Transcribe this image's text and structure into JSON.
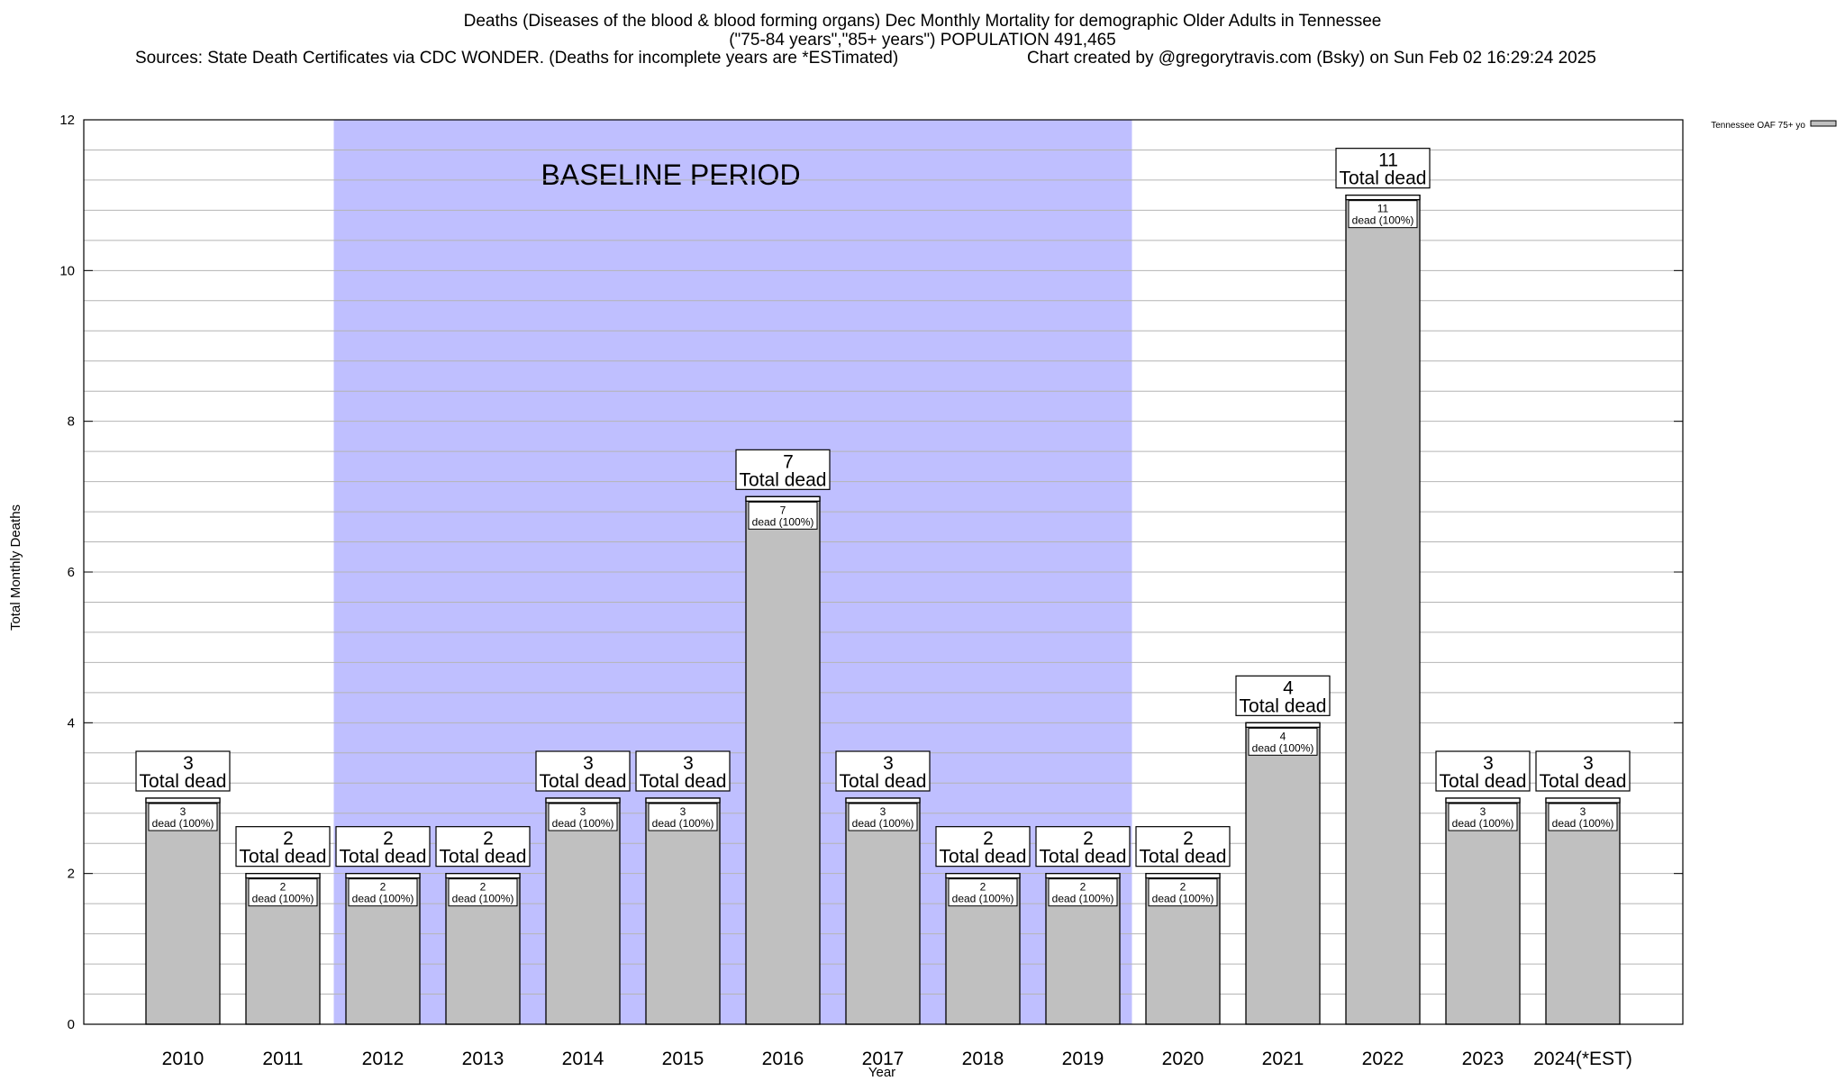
{
  "header": {
    "title_line1": "Deaths (Diseases of the blood & blood forming organs) Dec Monthly Mortality for demographic Older Adults in Tennessee",
    "title_line2": "(\"75-84 years\",\"85+ years\") POPULATION 491,465",
    "sources": "Sources: State Death Certificates via CDC WONDER. (Deaths for incomplete years are *ESTimated)",
    "credit": "Chart created by @gregorytravis.com (Bsky) on Sun Feb 02 16:29:24 2025"
  },
  "chart_data": {
    "type": "bar",
    "xlabel": "Year",
    "ylabel": "Total Monthly Deaths",
    "ylim": [
      0,
      12
    ],
    "yticks": [
      0,
      2,
      4,
      6,
      8,
      10,
      12
    ],
    "y_minor_step": 0.4,
    "grid": true,
    "categories": [
      "2010",
      "2011",
      "2012",
      "2013",
      "2014",
      "2015",
      "2016",
      "2017",
      "2018",
      "2019",
      "2020",
      "2021",
      "2022",
      "2023",
      "2024(*EST)"
    ],
    "series": [
      {
        "name": "Tennessee OAF 75+ yo",
        "values": [
          3,
          2,
          2,
          2,
          3,
          3,
          7,
          3,
          2,
          2,
          2,
          4,
          11,
          3,
          3
        ],
        "inner_labels": [
          "dead (100%)",
          "dead (100%)",
          "dead (100%)",
          "dead (100%)",
          "dead (100%)",
          "dead (100%)",
          "dead (100%)",
          "dead (100%)",
          "dead (100%)",
          "dead (100%)",
          "dead (100%)",
          "dead (100%)",
          "dead (100%)",
          "dead (100%)",
          "dead (100%)"
        ]
      }
    ],
    "total_label": "Total dead",
    "baseline": {
      "label": "BASELINE PERIOD",
      "start_category": "2012",
      "end_category": "2019",
      "color": "#bfbfff"
    },
    "bar_color": "#c0c0c0",
    "legend": {
      "placement": "top-right",
      "entry": "Tennessee OAF 75+ yo"
    }
  }
}
